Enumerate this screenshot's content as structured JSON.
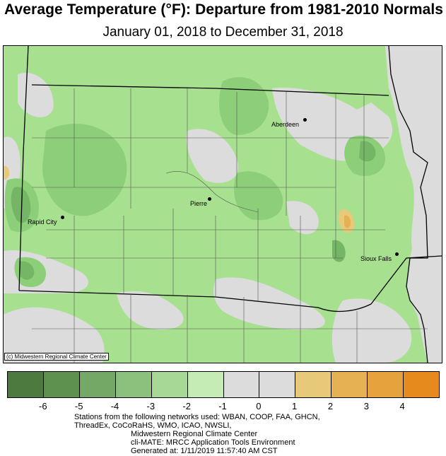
{
  "header": {
    "title": "Average Temperature (°F): Departure from 1981-2010 Normals",
    "subtitle": "January 01, 2018 to December 31, 2018"
  },
  "map": {
    "credit": "(c) Midwestern Regional Climate Center",
    "cities": [
      {
        "name": "Aberdeen"
      },
      {
        "name": "Pierre"
      },
      {
        "name": "Rapid City"
      },
      {
        "name": "Sioux Falls"
      }
    ]
  },
  "legend": {
    "colors": [
      "#4d7a3f",
      "#5e9150",
      "#74a866",
      "#8cc07d",
      "#a7d896",
      "#c5ecb5",
      "#dcdcdc",
      "#dcdcdc",
      "#e8c97a",
      "#e6b152",
      "#e6a23c",
      "#e68a1e"
    ],
    "ticks": [
      "-6",
      "-5",
      "-4",
      "-3",
      "-2",
      "-1",
      "0",
      "1",
      "2",
      "3",
      "4"
    ]
  },
  "footer": {
    "line1": "Stations from the following networks used: WBAN, COOP, FAA, GHCN,",
    "line2": "ThreadEx, CoCoRaHS, WMO, ICAO, NWSLI,",
    "line3": "Midwestern Regional Climate Center",
    "line4": "cli-MATE: MRCC Application Tools Environment",
    "line5": "Generated at: 1/11/2019 11:57:40 AM CST"
  }
}
